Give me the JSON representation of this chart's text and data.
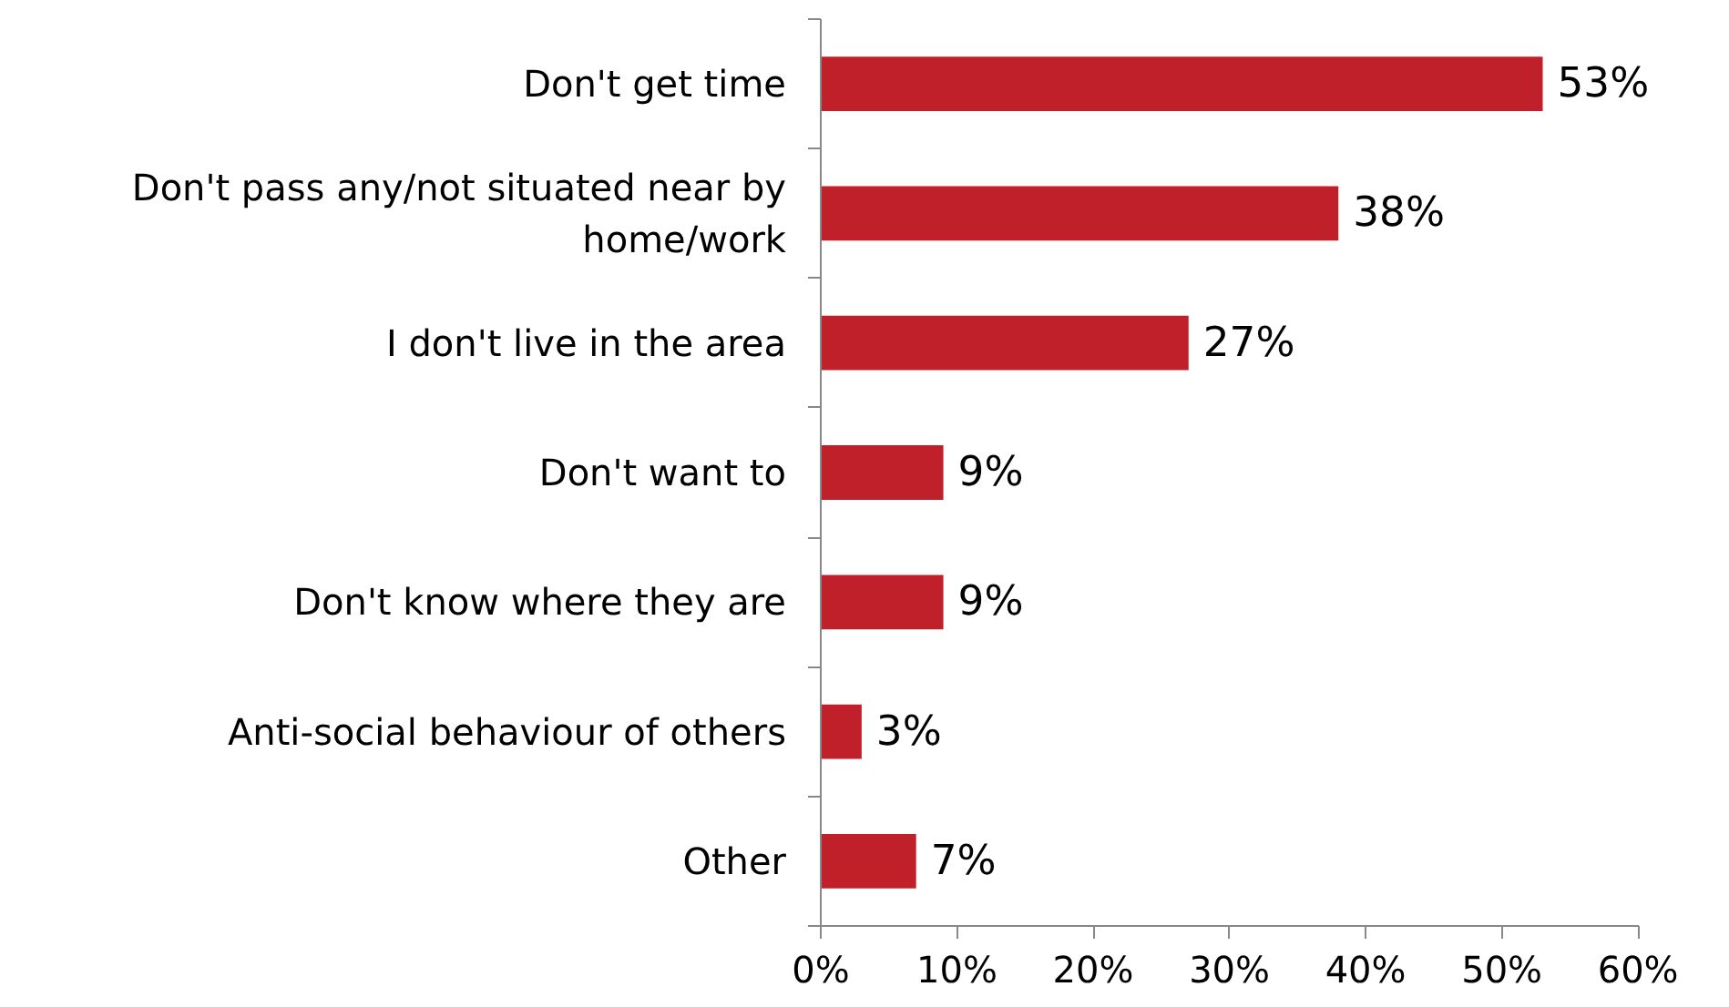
{
  "chart_data": {
    "type": "bar",
    "orientation": "horizontal",
    "categories": [
      "Don't get time",
      "Don't pass any/not situated near by home/work",
      "I don't live in the area",
      "Don't want to",
      "Don't know where they are",
      "Anti-social behaviour of others",
      "Other"
    ],
    "values": [
      53,
      38,
      27,
      9,
      9,
      3,
      7
    ],
    "value_labels": [
      "53%",
      "38%",
      "27%",
      "9%",
      "9%",
      "3%",
      "7%"
    ],
    "color": "#c0202a",
    "xlim": [
      0,
      60
    ],
    "xticks": [
      {
        "value": 0,
        "label": "0%"
      },
      {
        "value": 10,
        "label": "10%"
      },
      {
        "value": 20,
        "label": "20%"
      },
      {
        "value": 30,
        "label": "30%"
      },
      {
        "value": 40,
        "label": "40%"
      },
      {
        "value": 50,
        "label": "50%"
      },
      {
        "value": 60,
        "label": "60%"
      }
    ],
    "grid": false
  }
}
